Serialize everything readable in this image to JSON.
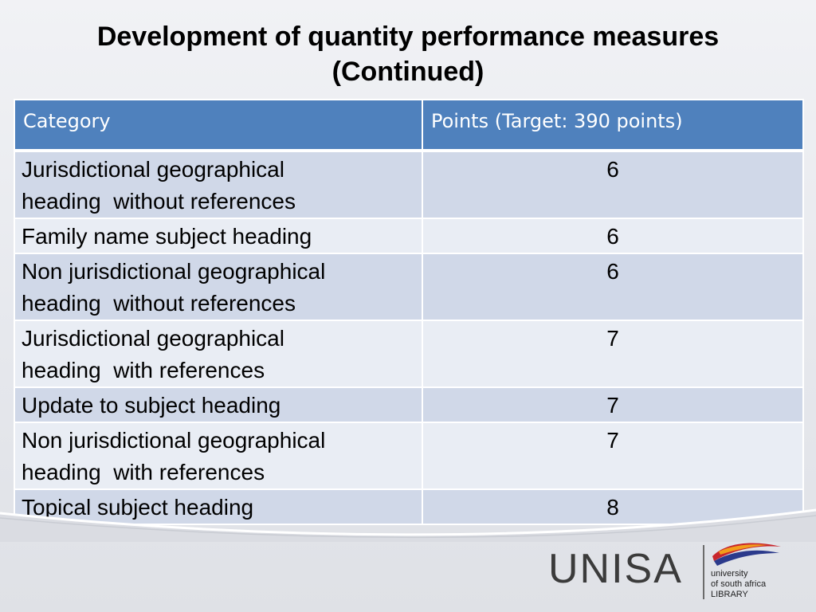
{
  "title": {
    "line1": "Development of quantity performance measures",
    "line2": "(Continued)"
  },
  "table": {
    "headers": [
      "Category",
      "Points (Target: 390 points)"
    ],
    "rows": [
      {
        "category": "Jurisdictional geographical\nheading  without references",
        "points": "6"
      },
      {
        "category": "Family name subject heading",
        "points": "6"
      },
      {
        "category": "Non jurisdictional geographical\nheading  without references",
        "points": "6"
      },
      {
        "category": "Jurisdictional geographical\nheading  with references",
        "points": "7"
      },
      {
        "category": "Update to subject heading",
        "points": "7"
      },
      {
        "category": "Non jurisdictional geographical\nheading  with references",
        "points": "7"
      },
      {
        "category": "Topical subject heading",
        "points": "8"
      }
    ]
  },
  "logo": {
    "wordmark": "UNISA",
    "subtitle_lines": [
      "university",
      "of south africa",
      "LIBRARY"
    ]
  },
  "colors": {
    "header_bg": "#4f81bd",
    "row_dark": "#d0d8e8",
    "row_light": "#e9edf4",
    "emblem_red": "#c8262c",
    "emblem_blue": "#2b3a8c",
    "emblem_orange": "#f29d1b"
  }
}
